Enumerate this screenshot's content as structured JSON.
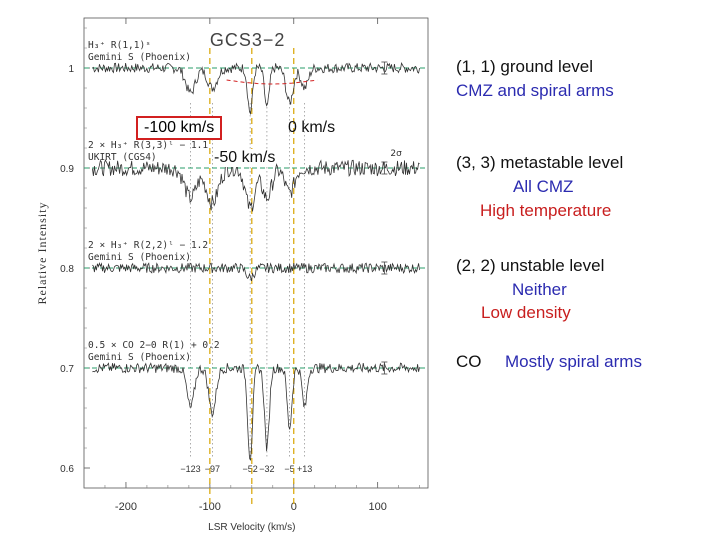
{
  "chart_data": {
    "type": "line",
    "title": "GCS3−2",
    "xlabel": "LSR Velocity (km/s)",
    "ylabel": "Relative Intensity",
    "xlim": [
      -250,
      160
    ],
    "ylim": [
      0.58,
      1.05
    ],
    "x_ticks": [
      -200,
      -100,
      0,
      100
    ],
    "y_ticks": [
      1,
      0.9,
      0.8,
      0.7,
      0.6
    ],
    "grid": false,
    "panels": [
      {
        "label": "H₃⁺ R(1,1)ˢ",
        "instrument": "Gemini S (Phoenix)",
        "continuum": 1.0,
        "absorptions": [
          {
            "center": -123,
            "depth": 0.025,
            "width": 8
          },
          {
            "center": -97,
            "depth": 0.02,
            "width": 8
          },
          {
            "center": -52,
            "depth": 0.045,
            "width": 4
          },
          {
            "center": -32,
            "depth": 0.04,
            "width": 4
          },
          {
            "center": -5,
            "depth": 0.035,
            "width": 6
          },
          {
            "center": 13,
            "depth": 0.02,
            "width": 6
          }
        ]
      },
      {
        "label": "2 × H₃⁺ R(3,3)ˡ − 1.1",
        "instrument": "UKIRT (CGS4)",
        "continuum": 0.9,
        "absorptions": [
          {
            "center": -123,
            "depth": 0.03,
            "width": 10
          },
          {
            "center": -97,
            "depth": 0.035,
            "width": 10
          },
          {
            "center": -52,
            "depth": 0.04,
            "width": 8
          },
          {
            "center": -32,
            "depth": 0.03,
            "width": 8
          },
          {
            "center": -5,
            "depth": 0.025,
            "width": 8
          }
        ]
      },
      {
        "label": "2 × H₃⁺ R(2,2)ˡ − 1.2",
        "instrument": "Gemini S (Phoenix)",
        "continuum": 0.8,
        "absorptions": [
          {
            "center": -52,
            "depth": 0.01,
            "width": 6
          }
        ]
      },
      {
        "label": "0.5 × CO 2−0 R(1) + 0.2",
        "instrument": "Gemini S (Phoenix)",
        "continuum": 0.7,
        "absorptions": [
          {
            "center": -123,
            "depth": 0.04,
            "width": 6
          },
          {
            "center": -97,
            "depth": 0.045,
            "width": 6
          },
          {
            "center": -52,
            "depth": 0.09,
            "width": 4
          },
          {
            "center": -32,
            "depth": 0.08,
            "width": 4
          },
          {
            "center": -5,
            "depth": 0.06,
            "width": 4
          },
          {
            "center": 13,
            "depth": 0.04,
            "width": 4
          }
        ]
      }
    ],
    "velocity_markers": [
      -123,
      -97,
      -52,
      -32,
      -5,
      13
    ],
    "marker_labels": [
      "−123",
      "−97",
      "−52",
      "−32",
      "−5",
      "+13"
    ],
    "highlight_lines": [
      {
        "x": -100,
        "label": "-100 km/s",
        "color": "#d8a400"
      },
      {
        "x": -50,
        "label": "-50 km/s",
        "color": "#d8a400"
      },
      {
        "x": 0,
        "label": "0 km/s",
        "color": "#d8a400"
      }
    ],
    "annotations": {
      "sigma_label": "2σ"
    }
  },
  "colors": {
    "continuum_dashed": "#2a9d6a",
    "highlight_red": "#d22020",
    "marker_yellow": "#d8a400",
    "blue_text": "#2b2bb0",
    "red_text": "#c81e1e"
  },
  "annotations": {
    "box_minus100": "-100 km/s",
    "label_zero": "0 km/s",
    "label_minus50": "-50 km/s"
  },
  "notes": {
    "g1_line1": "(1, 1) ground level",
    "g1_line2": "CMZ and spiral arms",
    "g2_line1": "(3, 3) metastable level",
    "g2_line2": "All CMZ",
    "g2_line3": "High temperature",
    "g3_line1": "(2, 2) unstable level",
    "g3_line2": "Neither",
    "g3_line3": "Low density",
    "g4_line1": "CO",
    "g4_line2": "Mostly spiral arms"
  }
}
